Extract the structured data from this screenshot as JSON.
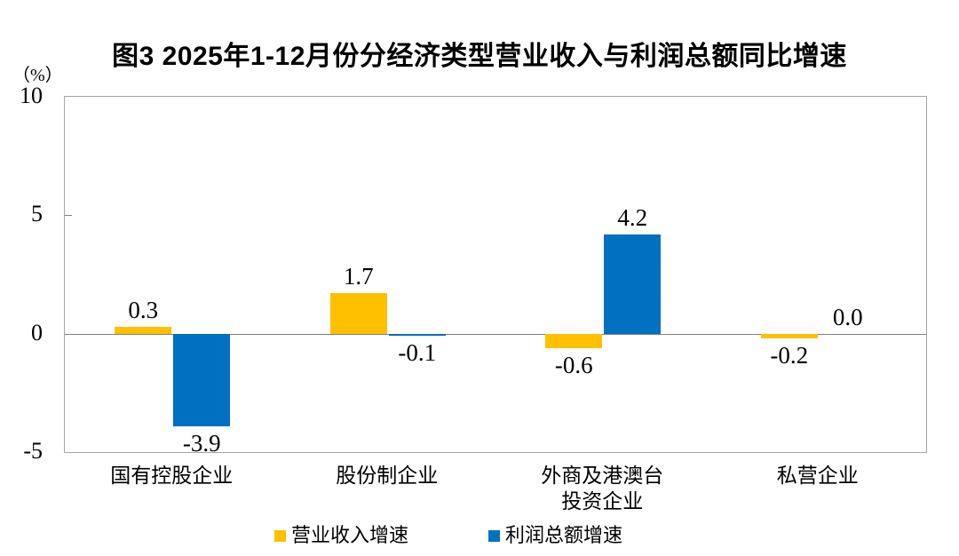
{
  "figure": {
    "title": "图3 2025年1-12月份分经济类型营业收入与利润总额同比增速",
    "unit_label": "（%）"
  },
  "chart_data": {
    "type": "bar",
    "title": "图3 2025年1-12月份分经济类型营业收入与利润总额同比增速",
    "ylabel": "（%）",
    "xlabel": "",
    "categories": [
      "国有控股企业",
      "股份制企业",
      "外商及港澳台\n投资企业",
      "私营企业"
    ],
    "series": [
      {
        "name": "营业收入增速",
        "color": "#FFC000",
        "values": [
          0.3,
          1.7,
          -0.6,
          -0.2
        ]
      },
      {
        "name": "利润总额增速",
        "color": "#0070C0",
        "values": [
          -3.9,
          -0.1,
          4.2,
          0.0
        ]
      }
    ],
    "ylim": [
      -5,
      10
    ],
    "yticks": [
      10,
      5,
      0,
      -5
    ],
    "grid": false,
    "legend_position": "bottom",
    "value_labels": true,
    "value_label_format": "one_decimal"
  },
  "colors": {
    "series_revenue": "#FFC000",
    "series_profit": "#0070C0",
    "plot_border": "#A6A6A6",
    "zero_line": "#808080",
    "text": "#000000",
    "background": "#FFFFFF"
  }
}
